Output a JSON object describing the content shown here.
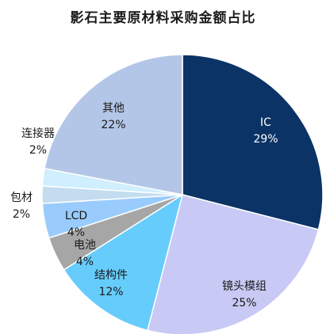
{
  "chart_data": {
    "type": "pie",
    "title": "影石主要原材料采购金额占比",
    "slices": [
      {
        "name": "IC",
        "value": 29,
        "label": "29%",
        "color": "#0b3366"
      },
      {
        "name": "镜头模组",
        "value": 25,
        "label": "25%",
        "color": "#c9c9f5"
      },
      {
        "name": "结构件",
        "value": 12,
        "label": "12%",
        "color": "#66ccfb"
      },
      {
        "name": "电池",
        "value": 4,
        "label": "4%",
        "color": "#a6a6a6"
      },
      {
        "name": "LCD",
        "value": 4,
        "label": "4%",
        "color": "#99ccfd"
      },
      {
        "name": "包材",
        "value": 2,
        "label": "2%",
        "color": "#c3dcef"
      },
      {
        "name": "连接器",
        "value": 2,
        "label": "2%",
        "color": "#cfeefe"
      },
      {
        "name": "其他",
        "value": 22,
        "label": "22%",
        "color": "#b4c6e7"
      }
    ],
    "start_angle_deg": 0,
    "direction": "clockwise",
    "legend": "none"
  }
}
